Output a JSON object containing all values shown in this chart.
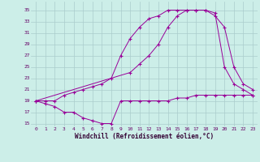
{
  "xlabel": "Windchill (Refroidissement éolien,°C)",
  "background_color": "#cceee8",
  "grid_color": "#aacccc",
  "line_color": "#990099",
  "xlim": [
    -0.5,
    23.5
  ],
  "ylim": [
    14.5,
    36.5
  ],
  "yticks": [
    15,
    17,
    19,
    21,
    23,
    25,
    27,
    29,
    31,
    33,
    35
  ],
  "xticks": [
    0,
    1,
    2,
    3,
    4,
    5,
    6,
    7,
    8,
    9,
    10,
    11,
    12,
    13,
    14,
    15,
    16,
    17,
    18,
    19,
    20,
    21,
    22,
    23
  ],
  "series": [
    {
      "x": [
        0,
        1,
        2,
        3,
        4,
        5,
        6,
        7,
        8,
        9,
        10,
        11,
        12,
        13,
        14,
        15,
        16,
        17,
        18,
        19,
        20,
        21,
        22,
        23
      ],
      "y": [
        19,
        18.5,
        18,
        17,
        17,
        16,
        15.5,
        15,
        15,
        19,
        19,
        19,
        19,
        19,
        19,
        19.5,
        19.5,
        20,
        20,
        20,
        20,
        20,
        20,
        20
      ]
    },
    {
      "x": [
        0,
        1,
        2,
        3,
        4,
        5,
        6,
        7,
        8,
        9,
        10,
        11,
        12,
        13,
        14,
        15,
        16,
        17,
        18,
        19,
        20,
        21,
        22,
        23
      ],
      "y": [
        19,
        19,
        19,
        20,
        20.5,
        21,
        21.5,
        22,
        23,
        27,
        30,
        32,
        33.5,
        34,
        35,
        35,
        35,
        35,
        35,
        34.5,
        25,
        22,
        21,
        20
      ]
    },
    {
      "x": [
        0,
        10,
        11,
        12,
        13,
        14,
        15,
        16,
        17,
        18,
        19,
        20,
        21,
        22,
        23
      ],
      "y": [
        19,
        24,
        25.5,
        27,
        29,
        32,
        34,
        35,
        35,
        35,
        34,
        32,
        25,
        22,
        21
      ]
    }
  ]
}
